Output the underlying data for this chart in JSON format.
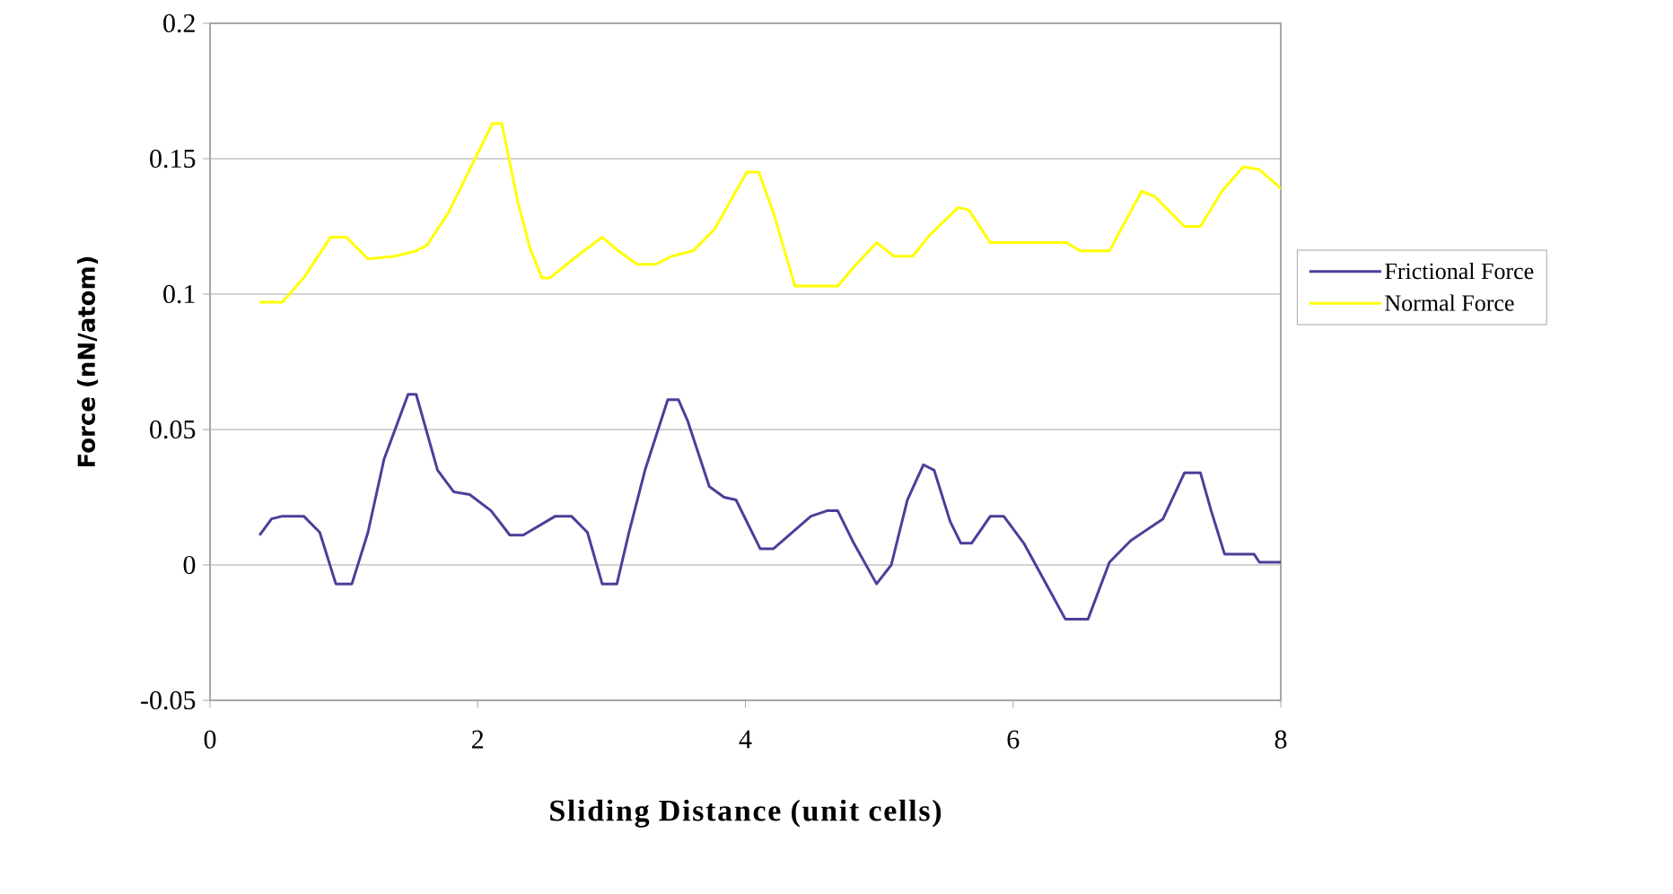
{
  "chart_data": {
    "type": "line",
    "xlabel": "Sliding Distance (unit cells)",
    "ylabel": "Force (nN/atom)",
    "xlim": [
      0,
      8
    ],
    "ylim": [
      -0.05,
      0.2
    ],
    "xticks": [
      0,
      2,
      4,
      6,
      8
    ],
    "yticks": [
      -0.05,
      0,
      0.05,
      0.1,
      0.15,
      0.2
    ],
    "grid": "y",
    "legend": "right",
    "series": [
      {
        "name": "Frictional Force",
        "color": "#4b3f9a",
        "x": [
          0.37,
          0.46,
          0.54,
          0.7,
          0.82,
          0.94,
          1.06,
          1.18,
          1.3,
          1.48,
          1.54,
          1.7,
          1.82,
          1.94,
          2.1,
          2.24,
          2.34,
          2.58,
          2.7,
          2.82,
          2.93,
          3.04,
          3.13,
          3.25,
          3.42,
          3.5,
          3.57,
          3.73,
          3.84,
          3.93,
          4.11,
          4.21,
          4.49,
          4.61,
          4.69,
          4.81,
          4.98,
          5.09,
          5.21,
          5.33,
          5.41,
          5.53,
          5.61,
          5.69,
          5.83,
          5.93,
          6.08,
          6.28,
          6.39,
          6.56,
          6.72,
          6.88,
          7.0,
          7.12,
          7.28,
          7.4,
          7.48,
          7.58,
          7.8,
          7.84,
          8.0
        ],
        "values": [
          0.011,
          0.017,
          0.018,
          0.018,
          0.012,
          -0.007,
          -0.007,
          0.012,
          0.039,
          0.063,
          0.063,
          0.035,
          0.027,
          0.026,
          0.02,
          0.011,
          0.011,
          0.018,
          0.018,
          0.012,
          -0.007,
          -0.007,
          0.012,
          0.035,
          0.061,
          0.061,
          0.053,
          0.029,
          0.025,
          0.024,
          0.006,
          0.006,
          0.018,
          0.02,
          0.02,
          0.008,
          -0.007,
          0.0,
          0.024,
          0.037,
          0.035,
          0.016,
          0.008,
          0.008,
          0.018,
          0.018,
          0.008,
          -0.01,
          -0.02,
          -0.02,
          0.001,
          0.009,
          0.013,
          0.017,
          0.034,
          0.034,
          0.02,
          0.004,
          0.004,
          0.001,
          0.001
        ]
      },
      {
        "name": "Normal Force",
        "color": "#ffff00",
        "x": [
          0.37,
          0.54,
          0.7,
          0.9,
          1.02,
          1.18,
          1.38,
          1.54,
          1.62,
          1.78,
          1.94,
          2.11,
          2.18,
          2.3,
          2.39,
          2.48,
          2.54,
          2.74,
          2.93,
          3.05,
          3.19,
          3.33,
          3.45,
          3.61,
          3.77,
          4.01,
          4.1,
          4.21,
          4.37,
          4.69,
          4.81,
          4.98,
          5.11,
          5.25,
          5.38,
          5.59,
          5.67,
          5.83,
          6.4,
          6.5,
          6.72,
          6.96,
          7.06,
          7.28,
          7.4,
          7.56,
          7.72,
          7.84,
          8.0
        ],
        "values": [
          0.097,
          0.097,
          0.106,
          0.121,
          0.121,
          0.113,
          0.114,
          0.116,
          0.118,
          0.13,
          0.146,
          0.163,
          0.163,
          0.134,
          0.117,
          0.106,
          0.106,
          0.114,
          0.121,
          0.116,
          0.111,
          0.111,
          0.114,
          0.116,
          0.124,
          0.145,
          0.145,
          0.13,
          0.103,
          0.103,
          0.11,
          0.119,
          0.114,
          0.114,
          0.122,
          0.132,
          0.131,
          0.119,
          0.119,
          0.116,
          0.116,
          0.138,
          0.136,
          0.125,
          0.125,
          0.138,
          0.147,
          0.146,
          0.139
        ]
      }
    ]
  }
}
